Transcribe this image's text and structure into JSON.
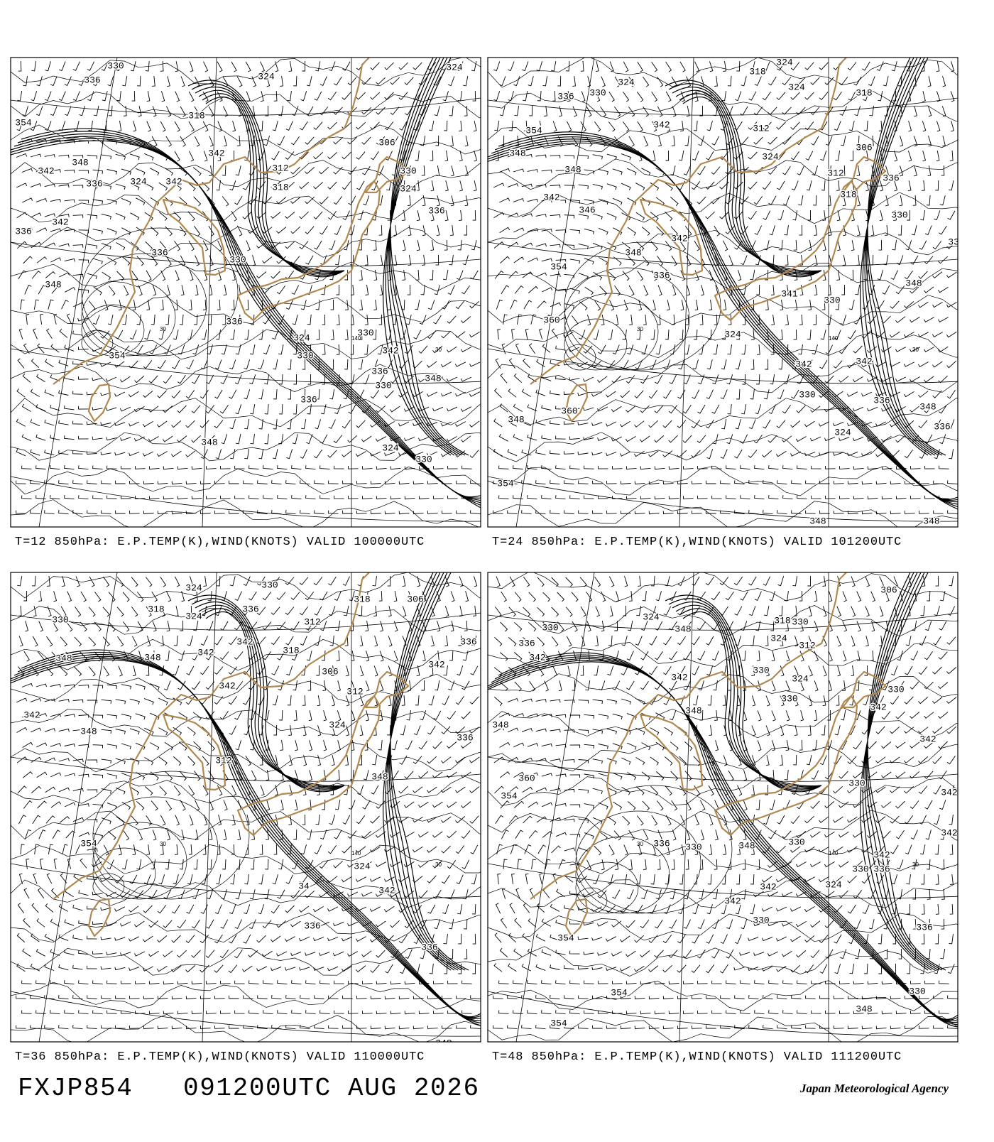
{
  "panels": [
    {
      "caption": "T=12 850hPa: E.P.TEMP(K),WIND(KNOTS) VALID 100000UTC",
      "contour_labels": [
        330,
        336,
        324,
        324,
        354,
        318,
        342,
        348,
        342,
        336,
        324,
        342,
        312,
        318,
        342,
        336,
        336,
        330,
        348,
        354,
        336,
        324,
        330,
        342,
        348,
        336,
        330,
        336,
        348,
        324,
        330,
        306,
        330,
        324,
        336,
        330
      ],
      "grid_labels": [
        30,
        140,
        30
      ]
    },
    {
      "caption": "T=24 850hPa: E.P.TEMP(K),WIND(KNOTS) VALID 101200UTC",
      "contour_labels": [
        324,
        318,
        324,
        330,
        336,
        324,
        318,
        354,
        342,
        312,
        348,
        324,
        348,
        306,
        312,
        336,
        342,
        346,
        318,
        330,
        336,
        342,
        348,
        354,
        336,
        348,
        360,
        341,
        330,
        324,
        342,
        342,
        330,
        336,
        348,
        348,
        360,
        324,
        336,
        354,
        348,
        348
      ],
      "grid_labels": [
        30,
        140,
        30
      ]
    },
    {
      "caption": "T=36 850hPa: E.P.TEMP(K),WIND(KNOTS) VALID 110000UTC",
      "contour_labels": [
        324,
        330,
        318,
        324,
        336,
        312,
        306,
        318,
        330,
        342,
        318,
        348,
        348,
        342,
        336,
        306,
        342,
        342,
        342,
        348,
        312,
        324,
        336,
        312,
        348,
        354,
        324,
        342,
        336,
        336,
        348,
        34
      ],
      "grid_labels": [
        30,
        140,
        30
      ]
    },
    {
      "caption": "T=48 850hPa: E.P.TEMP(K),WIND(KNOTS) VALID 111200UTC",
      "contour_labels": [
        306,
        324,
        348,
        318,
        330,
        330,
        336,
        312,
        324,
        342,
        342,
        330,
        324,
        330,
        348,
        342,
        348,
        330,
        342,
        360,
        354,
        330,
        342,
        342,
        336,
        330,
        348,
        330,
        342,
        330,
        336,
        342,
        324,
        342,
        330,
        336,
        354,
        354,
        348,
        330,
        354
      ],
      "grid_labels": [
        30,
        140,
        30
      ]
    }
  ],
  "footer": {
    "code": "FXJP854",
    "time": "091200UTC AUG 2026",
    "agency": "Japan Meteorological Agency"
  }
}
